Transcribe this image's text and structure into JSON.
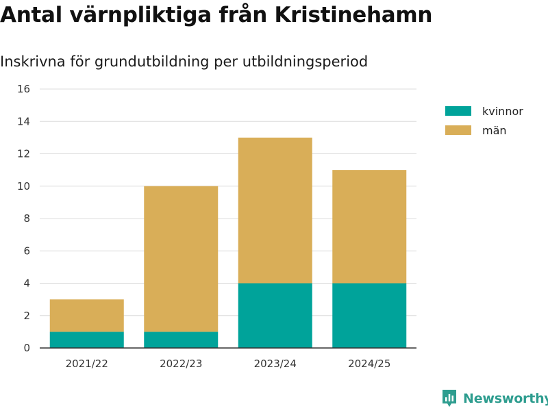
{
  "header": {
    "title": "Antal värnpliktiga från Kristinehamn",
    "subtitle": "Inskrivna för grundutbildning per utbildningsperiod"
  },
  "legend": {
    "items": [
      {
        "label": "kvinnor",
        "color": "#00a39a"
      },
      {
        "label": "män",
        "color": "#d9ae58"
      }
    ]
  },
  "brand": {
    "name": "Newsworthy",
    "icon": "newsworthy-logo-icon",
    "color": "#2e9d8f"
  },
  "chart_data": {
    "type": "bar",
    "stacked": true,
    "categories": [
      "2021/22",
      "2022/23",
      "2023/24",
      "2024/25"
    ],
    "series": [
      {
        "name": "kvinnor",
        "values": [
          1,
          1,
          4,
          4
        ],
        "color": "#00a39a"
      },
      {
        "name": "män",
        "values": [
          2,
          9,
          9,
          7
        ],
        "color": "#d9ae58"
      }
    ],
    "title": "Antal värnpliktiga från Kristinehamn",
    "subtitle": "Inskrivna för grundutbildning per utbildningsperiod",
    "xlabel": "",
    "ylabel": "",
    "ylim": [
      0,
      16
    ],
    "yticks": [
      0,
      2,
      4,
      6,
      8,
      10,
      12,
      14,
      16
    ],
    "grid": true,
    "legend_position": "top-right"
  }
}
